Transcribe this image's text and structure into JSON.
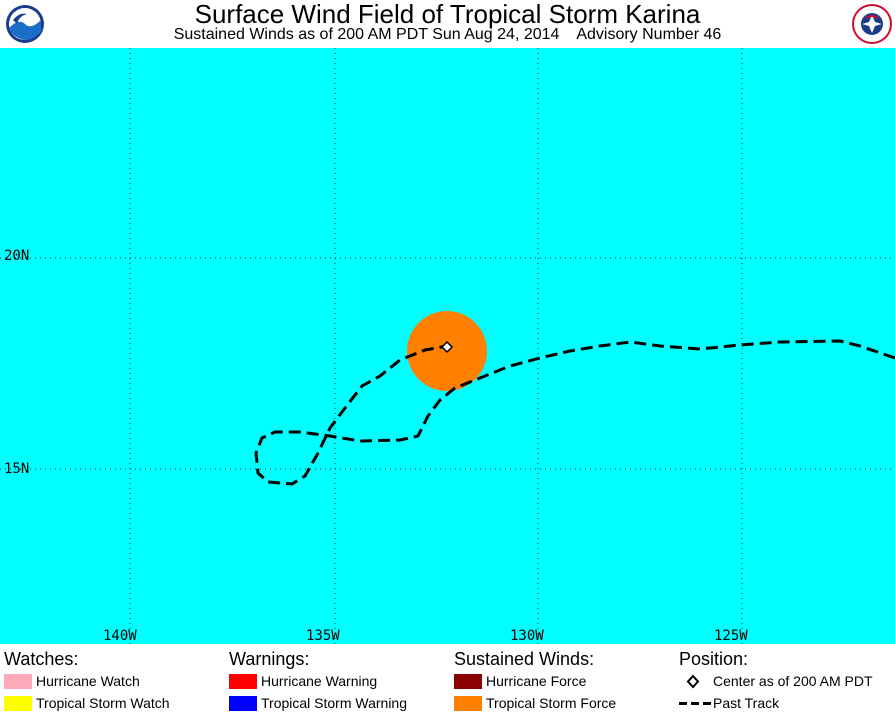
{
  "header": {
    "title": "Surface Wind Field of Tropical Storm Karina",
    "subtitle": "Sustained Winds as of 200 AM PDT Sun Aug 24, 2014    Advisory Number 46"
  },
  "map": {
    "lon_labels": [
      "140W",
      "135W",
      "130W",
      "125W"
    ],
    "lat_labels": [
      "20N",
      "15N"
    ],
    "colors": {
      "ocean": "#00ffff",
      "tropical_storm_force": "#ff8000",
      "track": "#000000"
    }
  },
  "legend": {
    "watches": {
      "heading": "Watches:",
      "items": [
        {
          "label": "Hurricane Watch",
          "color": "#ffaabb"
        },
        {
          "label": "Tropical Storm Watch",
          "color": "#ffff00"
        }
      ]
    },
    "warnings": {
      "heading": "Warnings:",
      "items": [
        {
          "label": "Hurricane Warning",
          "color": "#ff0000"
        },
        {
          "label": "Tropical Storm Warning",
          "color": "#0000ff"
        }
      ]
    },
    "winds": {
      "heading": "Sustained Winds:",
      "items": [
        {
          "label": "Hurricane Force",
          "color": "#8b0000"
        },
        {
          "label": "Tropical Storm Force",
          "color": "#ff8000"
        }
      ]
    },
    "position": {
      "heading": "Position:",
      "items": [
        {
          "label": "Center as of 200 AM PDT",
          "icon": "diamond-icon"
        },
        {
          "label": "Past Track",
          "icon": "dashed-line-icon"
        }
      ]
    }
  }
}
